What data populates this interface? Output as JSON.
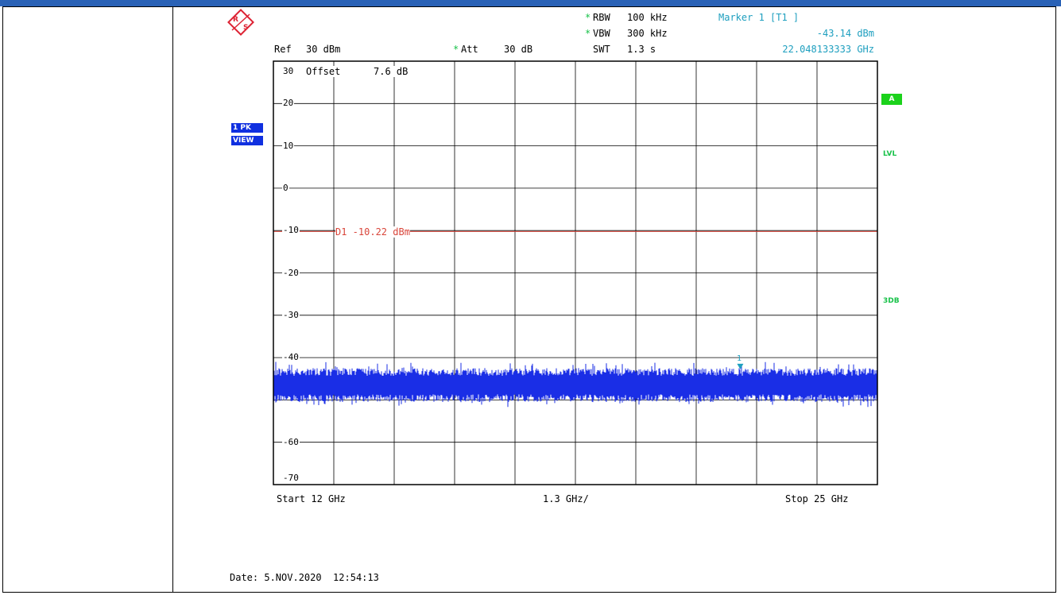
{
  "header": {
    "rbw_label": "RBW",
    "rbw_value": "100 kHz",
    "vbw_label": "VBW",
    "vbw_value": "300 kHz",
    "swt_label": "SWT",
    "swt_value": "1.3 s",
    "ref_label": "Ref",
    "ref_value": "30 dBm",
    "att_label": "Att",
    "att_value": "30 dB",
    "star": "*",
    "marker_title": "Marker 1 [T1 ]",
    "marker_level": "-43.14 dBm",
    "marker_freq": "22.048133333 GHz"
  },
  "left_badges": {
    "trace": "1 PK",
    "mode": "VIEW"
  },
  "right_badges": {
    "a": "A",
    "lvl": "LVL",
    "db3": "3DB"
  },
  "plot": {
    "offset_label": "Offset",
    "offset_value": "7.6 dB",
    "display_line_label": "D1 -10.22 dBm",
    "marker_label": "1"
  },
  "footer": {
    "start": "Start 12 GHz",
    "span": "1.3 GHz/",
    "stop": "Stop 25 GHz",
    "date": "Date: 5.NOV.2020  12:54:13"
  },
  "colors": {
    "trace": "#1a2ee6",
    "display_line": "#d9453a",
    "marker": "#1e9fbf",
    "accent_green": "#1bd21b"
  },
  "chart_data": {
    "type": "line",
    "x_unit": "GHz",
    "y_unit": "dBm",
    "xlim": [
      12,
      25
    ],
    "ylim": [
      -70,
      30
    ],
    "y_ticks": [
      "30",
      "20",
      "10",
      "0",
      "-10",
      "-20",
      "-30",
      "-40",
      "-60",
      "-70"
    ],
    "y_tick_values": [
      30,
      20,
      10,
      0,
      -10,
      -20,
      -30,
      -40,
      -60,
      -70
    ],
    "grid": true,
    "display_line_dbm": -10.22,
    "marker": {
      "x": 22.048133333,
      "y": -43.14
    },
    "trace": {
      "style": "noise-floor peak trace",
      "approx_level_dbm": -46.5,
      "approx_min_dbm": -50,
      "approx_max_dbm": -43
    }
  }
}
